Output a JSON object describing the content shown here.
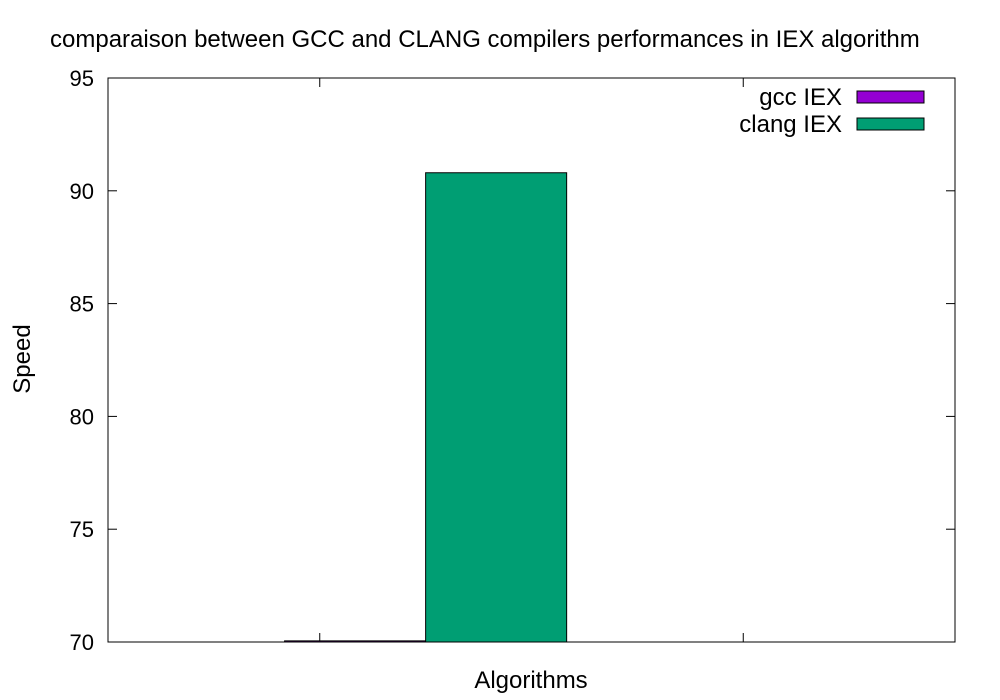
{
  "chart_data": {
    "type": "bar",
    "title": "comparaison between GCC and CLANG compilers performances in IEX algorithm",
    "xlabel": "Algorithms",
    "ylabel": "Speed",
    "ylim": [
      70,
      95
    ],
    "yticks": [
      70,
      75,
      80,
      85,
      90,
      95
    ],
    "categories": [
      ""
    ],
    "series": [
      {
        "name": "gcc IEX",
        "values": [
          70.05
        ],
        "color": "#9400d3"
      },
      {
        "name": "clang IEX",
        "values": [
          90.8
        ],
        "color": "#009e73"
      }
    ],
    "legend": "top-right",
    "grid": false
  }
}
